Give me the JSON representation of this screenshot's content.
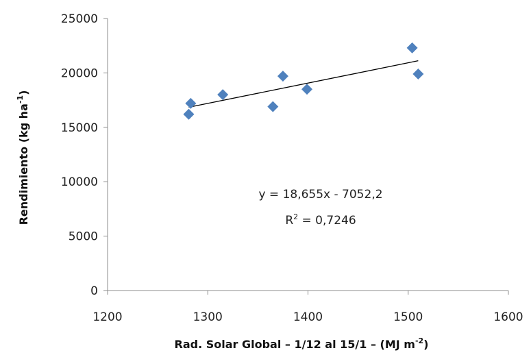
{
  "chart_data": {
    "type": "scatter",
    "title": "",
    "xlabel": "Rad. Solar Global – 1/12 al 15/1 – (MJ m",
    "xlabel_sup": "-2",
    "xlabel_end": ")",
    "ylabel": "Rendimiento (kg ha",
    "ylabel_sup": "-1",
    "ylabel_end": ")",
    "xlim": [
      1200,
      1600
    ],
    "ylim": [
      0,
      25000
    ],
    "x_ticks": [
      "1200",
      "1300",
      "1400",
      "1500",
      "1600"
    ],
    "y_ticks": [
      "0",
      "5000",
      "10000",
      "15000",
      "20000",
      "25000"
    ],
    "grid": false,
    "marker": "diamond",
    "marker_color": "#4F81BD",
    "points": [
      {
        "x": 1281,
        "y": 16200
      },
      {
        "x": 1283,
        "y": 17200
      },
      {
        "x": 1315,
        "y": 18000
      },
      {
        "x": 1365,
        "y": 16900
      },
      {
        "x": 1375,
        "y": 19700
      },
      {
        "x": 1399,
        "y": 18500
      },
      {
        "x": 1504,
        "y": 22300
      },
      {
        "x": 1510,
        "y": 19900
      }
    ],
    "trendline": {
      "type": "linear",
      "slope": 18.655,
      "intercept": -7052.2,
      "x_range": [
        1281,
        1510
      ],
      "equation": "y = 18,655x - 7052,2",
      "r2_prefix": "R",
      "r2_sup": "2",
      "r2_value": " = 0,7246"
    }
  }
}
